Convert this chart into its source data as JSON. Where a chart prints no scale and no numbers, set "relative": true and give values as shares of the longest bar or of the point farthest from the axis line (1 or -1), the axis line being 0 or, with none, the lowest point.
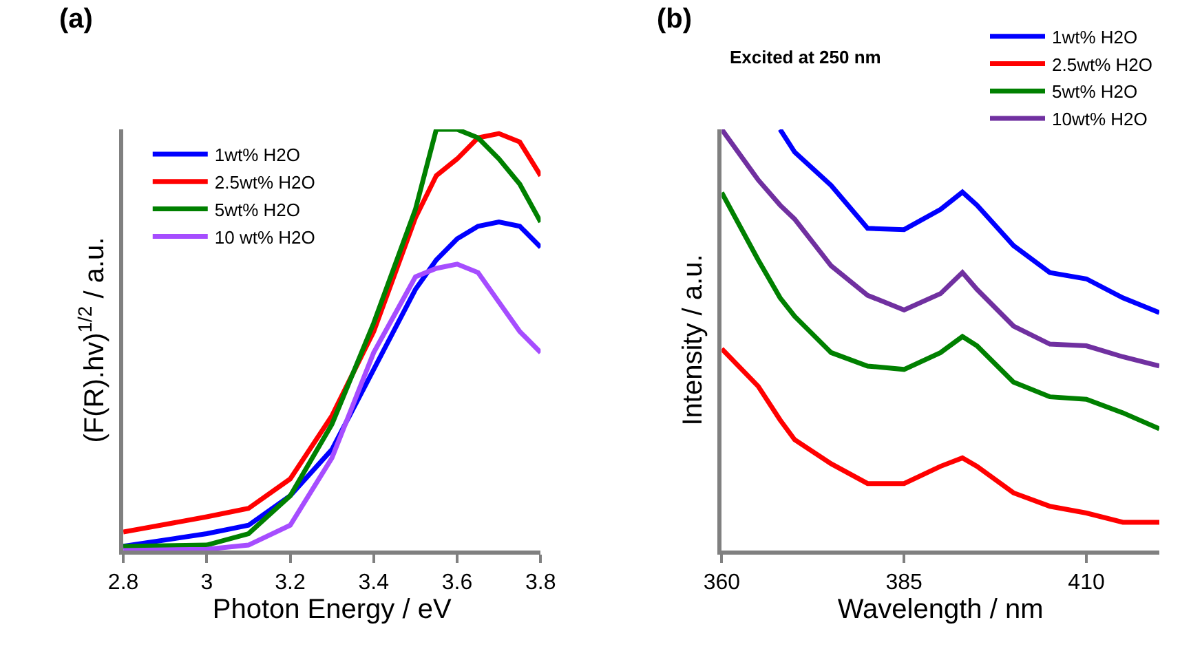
{
  "chart_data": [
    {
      "type": "line",
      "title": "(a)",
      "xlabel": "Photon Energy / eV",
      "ylabel": "(F(R).hv)$^{1/2}$ / a.u.",
      "relative": true,
      "xlim": [
        2.8,
        3.8
      ],
      "xticks": [
        2.8,
        3,
        3.2,
        3.4,
        3.6,
        3.8
      ],
      "legend": "top left",
      "marker": "none",
      "line_style": "solid",
      "tick_labels": "x",
      "x": [
        2.8,
        3.0,
        3.1,
        3.2,
        3.3,
        3.4,
        3.5,
        3.55,
        3.6,
        3.65,
        3.7,
        3.75,
        3.8
      ],
      "series": [
        {
          "name": "1wt% H2O",
          "color": "#0000ff",
          "values": [
            0.01,
            0.04,
            0.06,
            0.13,
            0.24,
            0.43,
            0.62,
            0.69,
            0.74,
            0.77,
            0.78,
            0.77,
            0.72
          ]
        },
        {
          "name": "2.5wt% H2O",
          "color": "#ff0000",
          "values": [
            0.044,
            0.08,
            0.1,
            0.17,
            0.32,
            0.52,
            0.79,
            0.89,
            0.93,
            0.98,
            0.99,
            0.97,
            0.89
          ]
        },
        {
          "name": "5wt% H2O",
          "color": "#008000",
          "values": [
            0.01,
            0.013,
            0.04,
            0.13,
            0.3,
            0.54,
            0.81,
            1.0,
            1.0,
            0.98,
            0.93,
            0.87,
            0.78
          ]
        },
        {
          "name": "10 wt% H2O",
          "color": "#a64dff",
          "values": [
            0,
            0.003,
            0.013,
            0.06,
            0.22,
            0.47,
            0.65,
            0.67,
            0.68,
            0.66,
            0.59,
            0.52,
            0.47
          ]
        }
      ]
    },
    {
      "type": "line",
      "title": "(b)",
      "xlabel": "Wavelength / nm",
      "ylabel": "Intensity / a.u.",
      "annotations": [
        "Excited at 250 nm"
      ],
      "relative": true,
      "xlim": [
        360,
        420
      ],
      "xticks": [
        360,
        385,
        410
      ],
      "legend": "top right",
      "marker": "none",
      "line_style": "solid",
      "tick_labels": "x",
      "x": [
        360,
        365,
        368,
        370,
        375,
        380,
        385,
        390,
        393,
        395,
        400,
        405,
        410,
        415,
        420
      ],
      "series": [
        {
          "name": "1wt% H2O",
          "color": "#0000ff",
          "values": [
            null,
            null,
            1.0,
            0.946,
            0.867,
            0.765,
            0.762,
            0.81,
            0.851,
            0.82,
            0.724,
            0.66,
            0.645,
            0.6,
            0.565
          ]
        },
        {
          "name": "2.5wt% H2O",
          "color": "#ff0000",
          "values": [
            0.479,
            0.39,
            0.31,
            0.263,
            0.206,
            0.159,
            0.159,
            0.2,
            0.22,
            0.2,
            0.137,
            0.105,
            0.089,
            0.067,
            0.067
          ]
        },
        {
          "name": "5wt% H2O",
          "color": "#008000",
          "values": [
            0.85,
            0.69,
            0.6,
            0.556,
            0.47,
            0.438,
            0.43,
            0.47,
            0.508,
            0.486,
            0.4,
            0.365,
            0.359,
            0.327,
            0.289
          ]
        },
        {
          "name": "10wt% H2O",
          "color": "#7030a0",
          "values": [
            1.0,
            0.88,
            0.82,
            0.787,
            0.676,
            0.606,
            0.571,
            0.61,
            0.66,
            0.62,
            0.533,
            0.49,
            0.486,
            0.46,
            0.438
          ]
        }
      ]
    }
  ]
}
